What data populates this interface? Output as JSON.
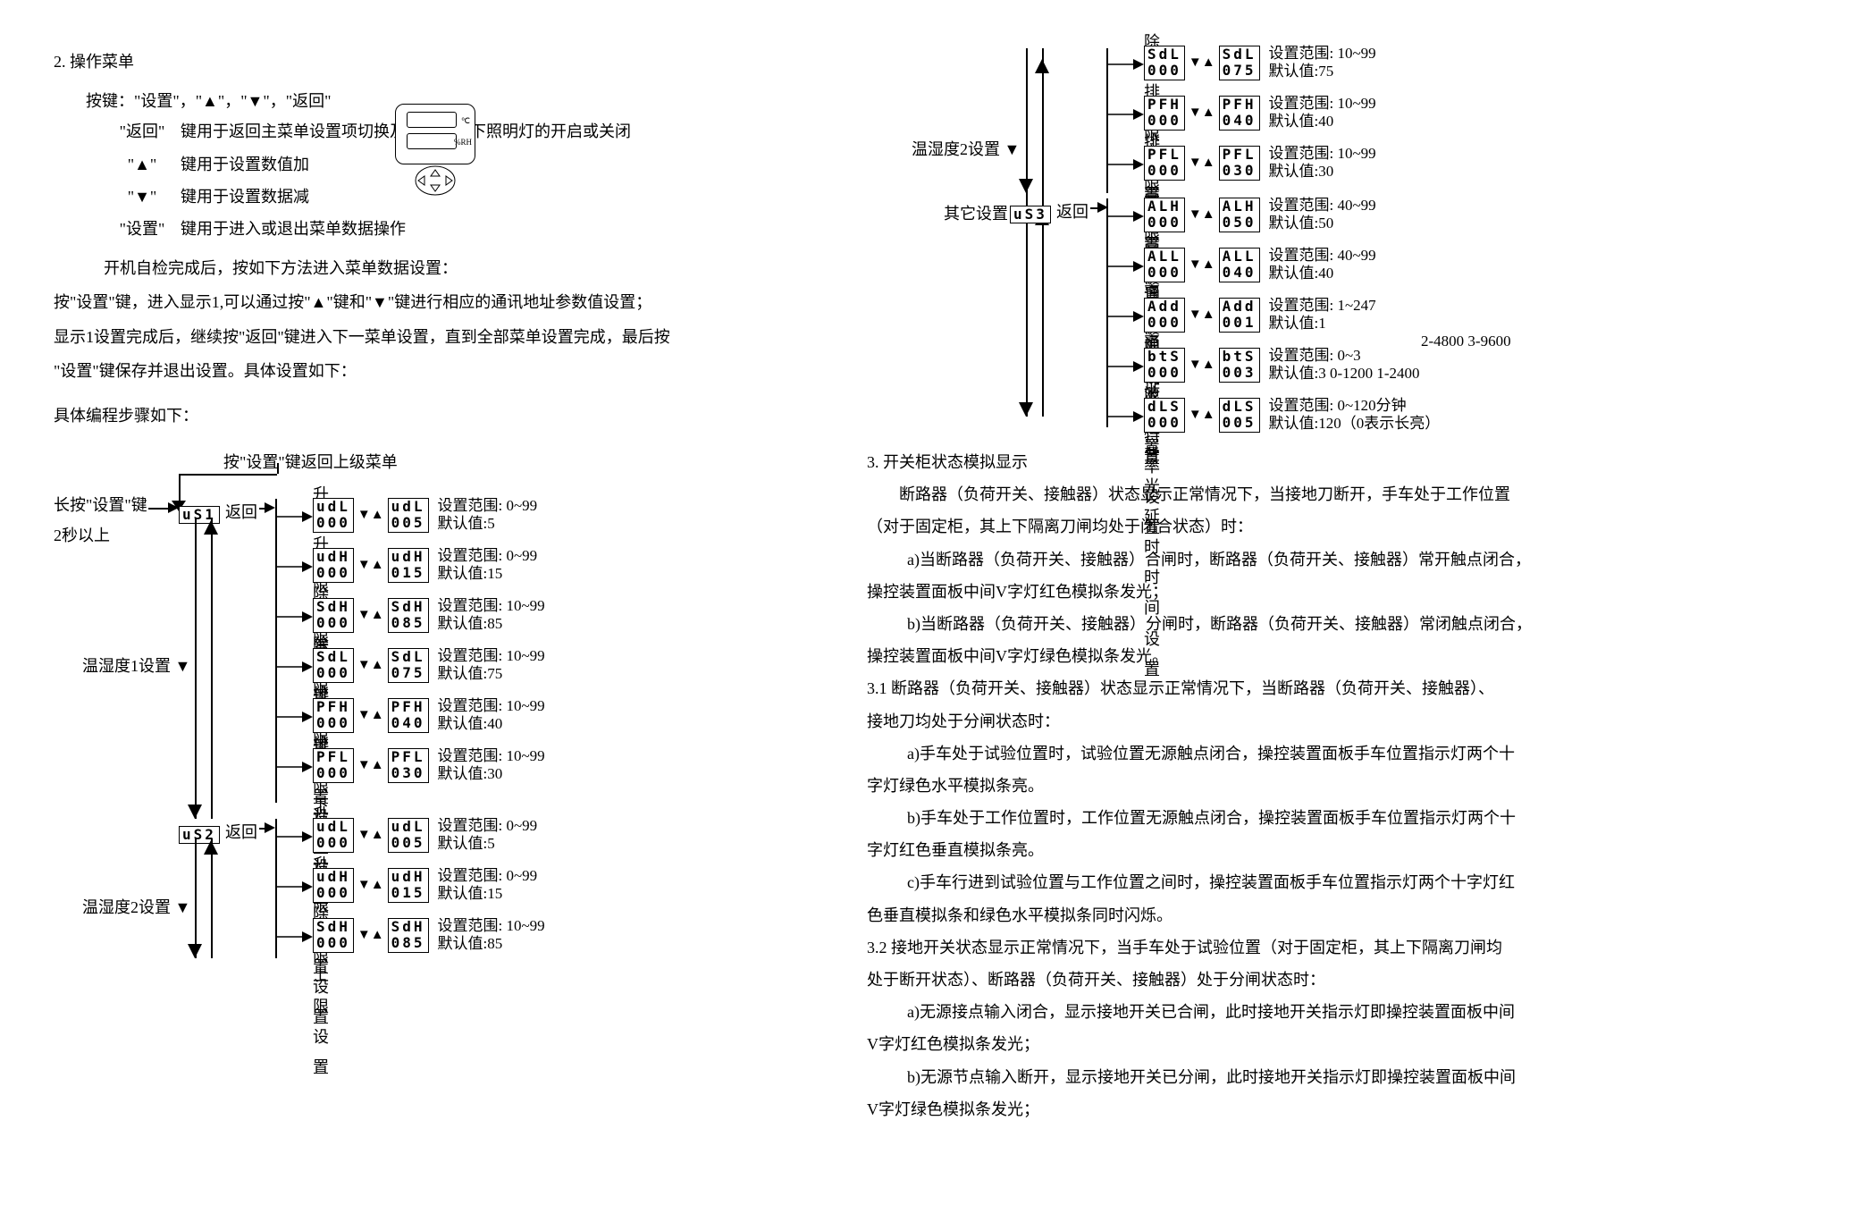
{
  "left": {
    "section_num": "2.",
    "section_title": "操作菜单",
    "keys_intro": "按键：\"设置\"，\"▲\"，\"▼\"，\"返回\"",
    "key_rows": [
      {
        "label": "\"返回\"",
        "desc": "键用于返回主菜单设置项切换及测量状态下照明灯的开启或关闭"
      },
      {
        "label": "\"▲\"",
        "desc": "键用于设置数值加"
      },
      {
        "label": "\"▼\"",
        "desc": "键用于设置数据减"
      },
      {
        "label": "\"设置\"",
        "desc": "键用于进入或退出菜单数据操作"
      }
    ],
    "para1": "开机自检完成后，按如下方法进入菜单数据设置：",
    "para2": "按\"设置\"键，进入显示1,可以通过按\"▲\"键和\"▼\"键进行相应的通讯地址参数值设置；",
    "para3": "显示1设置完成后，继续按\"返回\"键进入下一菜单设置，直到全部菜单设置完成，最后按",
    "para4": "\"设置\"键保存并退出设置。具体设置如下：",
    "para5": "具体编程步骤如下：",
    "flow": {
      "press_return": "按\"设置\"键返回上级菜单",
      "long_press": "长按\"设置\"键",
      "two_sec": "2秒以上",
      "return_lbl": "返回",
      "group1_title": "温湿度1设置",
      "group2_title": "温湿度2设置",
      "us1": "uS1",
      "us2": "uS2",
      "params1": [
        {
          "title": "升温下限设置",
          "code": "udL",
          "init": "000",
          "code2": "udL",
          "val": "005",
          "range": "设置范围: 0~99",
          "def": "默认值:5"
        },
        {
          "title": "升温上限设置",
          "code": "udH",
          "init": "000",
          "code2": "udH",
          "val": "015",
          "range": "设置范围: 0~99",
          "def": "默认值:15"
        },
        {
          "title": "除湿上限设置",
          "code": "SdH",
          "init": "000",
          "code2": "SdH",
          "val": "085",
          "range": "设置范围: 10~99",
          "def": "默认值:85"
        },
        {
          "title": "除湿下限设置",
          "code": "SdL",
          "init": "000",
          "code2": "SdL",
          "val": "075",
          "range": "设置范围: 10~99",
          "def": "默认值:75"
        },
        {
          "title": "排风上限设置",
          "code": "PFH",
          "init": "000",
          "code2": "PFH",
          "val": "040",
          "range": "设置范围: 10~99",
          "def": "默认值:40"
        },
        {
          "title": "排风下限设置",
          "code": "PFL",
          "init": "000",
          "code2": "PFL",
          "val": "030",
          "range": "设置范围: 10~99",
          "def": "默认值:30"
        }
      ],
      "params2": [
        {
          "title": "升温下限设置",
          "code": "udL",
          "init": "000",
          "code2": "udL",
          "val": "005",
          "range": "设置范围: 0~99",
          "def": "默认值:5"
        },
        {
          "title": "升温上限设置",
          "code": "udH",
          "init": "000",
          "code2": "udH",
          "val": "015",
          "range": "设置范围: 0~99",
          "def": "默认值:15"
        },
        {
          "title": "除湿上限设置",
          "code": "SdH",
          "init": "000",
          "code2": "SdH",
          "val": "085",
          "range": "设置范围: 10~99",
          "def": "默认值:85"
        }
      ]
    }
  },
  "right": {
    "diag": {
      "group2_title": "温湿度2设置",
      "group3_title": "其它设置",
      "us3": "uS3",
      "return_lbl": "返回",
      "params_top": [
        {
          "title": "除湿下限设置",
          "code": "SdL",
          "init": "000",
          "code2": "SdL",
          "val": "075",
          "range": "设置范围: 10~99",
          "def": "默认值:75"
        },
        {
          "title": "排风上限设置",
          "code": "PFH",
          "init": "000",
          "code2": "PFH",
          "val": "040",
          "range": "设置范围: 10~99",
          "def": "默认值:40"
        },
        {
          "title": "排风下限设置",
          "code": "PFL",
          "init": "000",
          "code2": "PFL",
          "val": "030",
          "range": "设置范围: 10~99",
          "def": "默认值:30"
        }
      ],
      "params_other": [
        {
          "title": "高温报警上限设置",
          "code": "ALH",
          "init": "000",
          "code2": "ALH",
          "val": "050",
          "range": "设置范围: 40~99",
          "def": "默认值:50"
        },
        {
          "title": "高温报警下限设置",
          "code": "ALL",
          "init": "000",
          "code2": "ALL",
          "val": "040",
          "range": "设置范围: 40~99",
          "def": "默认值:40"
        },
        {
          "title": "通讯地址设置",
          "code": "Add",
          "init": "000",
          "code2": "Add",
          "val": "001",
          "range": "设置范围: 1~247",
          "def": "默认值:1"
        },
        {
          "title": "通讯波特率设置",
          "code": "btS",
          "init": "000",
          "code2": "btS",
          "val": "003",
          "range": "设置范围: 0~3",
          "def": "默认值:3  0-1200  1-2400",
          "extra": "2-4800  3-9600"
        },
        {
          "title": "液晶背光延时时间设置",
          "code": "dLS",
          "init": "000",
          "code2": "dLS",
          "val": "005",
          "range": "设置范围: 0~120分钟",
          "def": "默认值:120（0表示长亮）"
        }
      ]
    },
    "sec3": {
      "title_num": "3.",
      "title": "开关柜状态模拟显示",
      "p1": "断路器（负荷开关、接触器）状态显示正常情况下，当接地刀断开，手车处于工作位置",
      "p2": "（对于固定柜，其上下隔离刀闸均处于闭合状态）时：",
      "p3": "a)当断路器（负荷开关、接触器）合闸时，断路器（负荷开关、接触器）常开触点闭合，",
      "p4": "操控装置面板中间V字灯红色模拟条发光；",
      "p5": "b)当断路器（负荷开关、接触器）分闸时，断路器（负荷开关、接触器）常闭触点闭合，",
      "p6": "操控装置面板中间V字灯绿色模拟条发光。",
      "p31t": "3.1 断路器（负荷开关、接触器）状态显示正常情况下，当断路器（负荷开关、接触器）、",
      "p31b": "接地刀均处于分闸状态时：",
      "p31a": "a)手车处于试验位置时，试验位置无源触点闭合，操控装置面板手车位置指示灯两个十",
      "p31a2": "字灯绿色水平模拟条亮。",
      "p31b1": "b)手车处于工作位置时，工作位置无源触点闭合，操控装置面板手车位置指示灯两个十",
      "p31b2": "字灯红色垂直模拟条亮。",
      "p31c": "c)手车行进到试验位置与工作位置之间时，操控装置面板手车位置指示灯两个十字灯红",
      "p31c2": "色垂直模拟条和绿色水平模拟条同时闪烁。",
      "p32": "3.2 接地开关状态显示正常情况下，当手车处于试验位置（对于固定柜，其上下隔离刀闸均",
      "p32b": "处于断开状态）、断路器（负荷开关、接触器）处于分闸状态时：",
      "p32a": "a)无源接点输入闭合，显示接地开关已合闸，此时接地开关指示灯即操控装置面板中间",
      "p32a2": "V字灯红色模拟条发光；",
      "p32b1": "b)无源节点输入断开，显示接地开关已分闸，此时接地开关指示灯即操控装置面板中间",
      "p32b2": "V字灯绿色模拟条发光；"
    }
  }
}
